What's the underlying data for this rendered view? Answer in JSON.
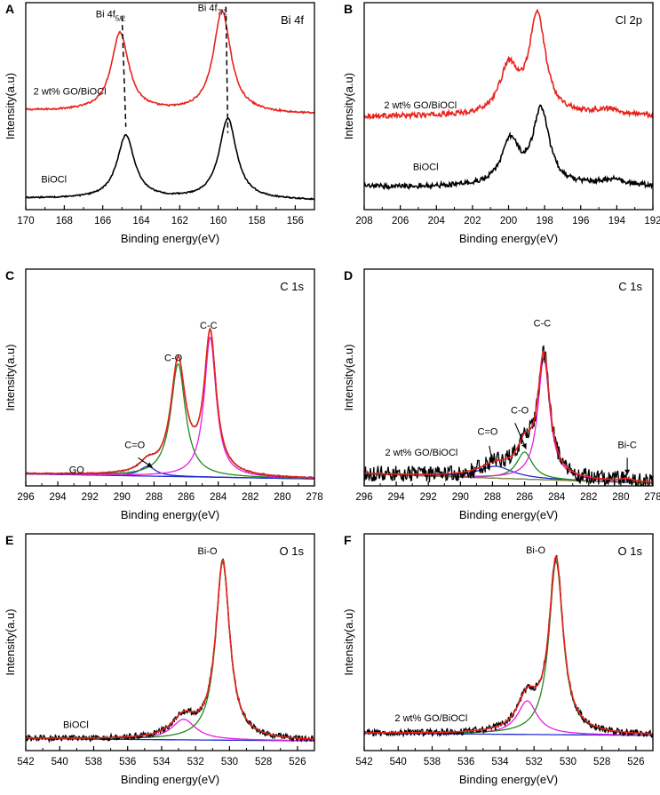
{
  "figure": {
    "panels": [
      {
        "letter": "A",
        "title": "Bi 4f",
        "xlabel": "Binding energy(eV)",
        "ylabel": "Intensity(a.u)"
      },
      {
        "letter": "B",
        "title": "Cl 2p",
        "xlabel": "Binding energy(eV)",
        "ylabel": "Intensity(a.u)"
      },
      {
        "letter": "C",
        "title": "C 1s",
        "xlabel": "Binding energy(eV)",
        "ylabel": "Intensity(a.u)"
      },
      {
        "letter": "D",
        "title": "C 1s",
        "xlabel": "Binding energy(eV)",
        "ylabel": "Intensity(a.u)"
      },
      {
        "letter": "E",
        "title": "O 1s",
        "xlabel": "Binding energy(eV)",
        "ylabel": "Intensity(a.u)"
      },
      {
        "letter": "F",
        "title": "O 1s",
        "xlabel": "Binding energy(eV)",
        "ylabel": "Intensity(a.u)"
      }
    ]
  },
  "colors": {
    "red": "#e8231d",
    "black": "#000000",
    "green": "#1f8a1f",
    "magenta": "#e61ee6",
    "blue": "#1f2ccf",
    "olive": "#8a8a3a"
  },
  "chart_data": [
    {
      "panel": "A",
      "type": "line",
      "title": "Bi 4f",
      "xlabel": "Binding energy(eV)",
      "ylabel": "Intensity(a.u)",
      "xlim": [
        170,
        155
      ],
      "ylim": [
        0,
        10
      ],
      "x_reversed": true,
      "xticks": [
        170,
        168,
        166,
        164,
        162,
        160,
        158,
        156
      ],
      "series": [
        {
          "name": "2 wt% GO/BiOCl",
          "color": "#e8231d",
          "baseline": 4.6,
          "slope": 0.012,
          "noise": 0.04,
          "peaks": [
            {
              "center": 165.1,
              "height": 3.8,
              "width": 0.55
            },
            {
              "center": 159.8,
              "height": 4.9,
              "width": 0.55
            }
          ]
        },
        {
          "name": "BiOCl",
          "color": "#000000",
          "baseline": 0.45,
          "slope": 0.006,
          "noise": 0.03,
          "peaks": [
            {
              "center": 164.8,
              "height": 3.05,
              "width": 0.55
            },
            {
              "center": 159.5,
              "height": 3.9,
              "width": 0.55
            }
          ]
        }
      ],
      "annotations": [
        {
          "text": "Bi 4f",
          "sub": "5/2",
          "x": 165.6,
          "y": 9.3
        },
        {
          "text": "Bi 4f",
          "sub": "7/2",
          "x": 160.3,
          "y": 9.6
        }
      ],
      "dashed_lines": [
        {
          "x_top": 165.0,
          "x_bottom": 164.8,
          "y_top": 9.35,
          "y_bottom": 4.0
        },
        {
          "x_top": 159.6,
          "x_bottom": 159.5,
          "y_top": 9.8,
          "y_bottom": 3.7
        }
      ],
      "series_labels": [
        {
          "text": "2 wt% GO/BiOCl",
          "x": 169.6,
          "y": 5.55
        },
        {
          "text": "BiOCl",
          "x": 169.2,
          "y": 1.3
        }
      ]
    },
    {
      "panel": "B",
      "type": "line",
      "title": "Cl 2p",
      "xlabel": "Binding energy(eV)",
      "ylabel": "Intensity(a.u)",
      "xlim": [
        208,
        192
      ],
      "ylim": [
        0,
        10
      ],
      "x_reversed": true,
      "xticks": [
        208,
        206,
        204,
        202,
        200,
        198,
        196,
        194,
        192
      ],
      "series": [
        {
          "name": "2 wt% GO/BiOCl",
          "color": "#e8231d",
          "baseline": 4.5,
          "slope": 0,
          "noise": 0.12,
          "peaks": [
            {
              "center": 200.0,
              "height": 2.2,
              "width": 0.6
            },
            {
              "center": 198.4,
              "height": 4.8,
              "width": 0.55
            },
            {
              "center": 194.5,
              "height": 0.28,
              "width": 1.0
            }
          ]
        },
        {
          "name": "BiOCl",
          "color": "#000000",
          "baseline": 1.1,
          "slope": 0,
          "noise": 0.12,
          "peaks": [
            {
              "center": 199.9,
              "height": 2.1,
              "width": 0.6
            },
            {
              "center": 198.2,
              "height": 3.6,
              "width": 0.55
            },
            {
              "center": 194.3,
              "height": 0.3,
              "width": 1.0
            }
          ]
        }
      ],
      "series_labels": [
        {
          "text": "2 wt% GO/BiOCl",
          "x": 206.9,
          "y": 4.9
        },
        {
          "text": "BiOCl",
          "x": 205.3,
          "y": 1.9
        }
      ]
    },
    {
      "panel": "C",
      "type": "line",
      "title": "C 1s",
      "xlabel": "Binding energy(eV)",
      "ylabel": "Intensity(a.u)",
      "xlim": [
        296,
        278
      ],
      "ylim": [
        0,
        10
      ],
      "x_reversed": true,
      "xticks": [
        296,
        294,
        292,
        290,
        288,
        286,
        284,
        282,
        280,
        278
      ],
      "fit_baseline": {
        "left": 0.55,
        "right": 0.32
      },
      "components": [
        {
          "name": "C=O",
          "color": "#1f2ccf",
          "center": 288.4,
          "height": 0.45,
          "width": 0.6
        },
        {
          "name": "C-O",
          "color": "#1f8a1f",
          "center": 286.5,
          "height": 5.2,
          "width": 0.55
        },
        {
          "name": "C-C",
          "color": "#e61ee6",
          "center": 284.5,
          "height": 6.45,
          "width": 0.45
        }
      ],
      "envelope_color": "#e8231d",
      "data_color": "#000000",
      "data_noise": 0.03,
      "annotations": [
        {
          "text": "C-C",
          "x": 284.6,
          "y": 7.25
        },
        {
          "text": "C-O",
          "x": 286.8,
          "y": 5.75
        },
        {
          "text": "C=O",
          "x": 289.2,
          "y": 1.75
        }
      ],
      "arrows": [
        {
          "x1": 289.0,
          "y1": 1.3,
          "x2": 288.1,
          "y2": 0.85
        }
      ],
      "series_labels": [
        {
          "text": "GO",
          "x": 293.3,
          "y": 0.6
        }
      ]
    },
    {
      "panel": "D",
      "type": "line",
      "title": "C 1s",
      "xlabel": "Binding energy(eV)",
      "ylabel": "Intensity(a.u)",
      "xlim": [
        296,
        278
      ],
      "ylim": [
        0,
        10
      ],
      "x_reversed": true,
      "xticks": [
        296,
        294,
        292,
        290,
        288,
        286,
        284,
        282,
        280,
        278
      ],
      "fit_baseline": {
        "left": 0.55,
        "right": 0.12
      },
      "components": [
        {
          "name": "C=O",
          "color": "#1f2ccf",
          "center": 287.8,
          "height": 0.55,
          "width": 1.3
        },
        {
          "name": "C-O",
          "color": "#1f8a1f",
          "center": 286.0,
          "height": 1.25,
          "width": 0.6
        },
        {
          "name": "C-C",
          "color": "#e61ee6",
          "center": 284.8,
          "height": 5.6,
          "width": 0.45
        },
        {
          "name": "Bi-C",
          "color": "#8a8a3a",
          "center": 279.6,
          "height": 0.12,
          "width": 0.5
        }
      ],
      "envelope_color": "#e8231d",
      "data_color": "#000000",
      "data_noise": 0.38,
      "annotations": [
        {
          "text": "C-C",
          "x": 284.9,
          "y": 7.35
        },
        {
          "text": "C-O",
          "x": 286.3,
          "y": 3.35
        },
        {
          "text": "C=O",
          "x": 288.3,
          "y": 2.35
        },
        {
          "text": "Bi-C",
          "x": 279.6,
          "y": 1.75
        }
      ],
      "arrows": [
        {
          "x1": 286.6,
          "y1": 2.9,
          "x2": 285.9,
          "y2": 1.7
        },
        {
          "x1": 288.2,
          "y1": 1.85,
          "x2": 288.0,
          "y2": 1.05
        },
        {
          "x1": 279.6,
          "y1": 1.3,
          "x2": 279.6,
          "y2": 0.5
        }
      ],
      "series_labels": [
        {
          "text": "2 wt% GO/BiOCl",
          "x": 294.7,
          "y": 1.4
        }
      ]
    },
    {
      "panel": "E",
      "type": "line",
      "title": "O 1s",
      "xlabel": "Binding energy(eV)",
      "ylabel": "Intensity(a.u)",
      "xlim": [
        542,
        525
      ],
      "ylim": [
        0,
        10
      ],
      "x_reversed": true,
      "xticks": [
        542,
        540,
        538,
        536,
        534,
        532,
        530,
        528,
        526
      ],
      "fit_baseline": {
        "left": 0.55,
        "right": 0.45
      },
      "components": [
        {
          "name": "shoulder",
          "color": "#e61ee6",
          "center": 532.7,
          "height": 0.95,
          "width": 0.85
        },
        {
          "name": "Bi-O",
          "color": "#1f8a1f",
          "center": 530.4,
          "height": 8.2,
          "width": 0.5
        }
      ],
      "envelope_color": "#e8231d",
      "data_color": "#000000",
      "data_noise": 0.14,
      "annotations": [
        {
          "text": "Bi-O",
          "x": 531.3,
          "y": 9.05
        }
      ],
      "series_labels": [
        {
          "text": "BiOCl",
          "x": 539.8,
          "y": 1.05
        }
      ]
    },
    {
      "panel": "F",
      "type": "line",
      "title": "O 1s",
      "xlabel": "Binding energy(eV)",
      "ylabel": "Intensity(a.u)",
      "xlim": [
        542,
        525
      ],
      "ylim": [
        0,
        10
      ],
      "x_reversed": true,
      "xticks": [
        542,
        540,
        538,
        536,
        534,
        532,
        530,
        528,
        526
      ],
      "fit_baseline": {
        "left": 0.8,
        "right": 0.7
      },
      "components": [
        {
          "name": "shoulder",
          "color": "#e61ee6",
          "center": 532.4,
          "height": 1.55,
          "width": 0.7
        },
        {
          "name": "Bi-O",
          "color": "#1f8a1f",
          "center": 530.7,
          "height": 8.0,
          "width": 0.5
        }
      ],
      "envelope_color": "#e8231d",
      "data_color": "#000000",
      "data_noise": 0.16,
      "annotations": [
        {
          "text": "Bi-O",
          "x": 531.9,
          "y": 9.1
        }
      ],
      "series_labels": [
        {
          "text": "2 wt% GO/BiOCl",
          "x": 540.2,
          "y": 1.35
        }
      ]
    }
  ]
}
